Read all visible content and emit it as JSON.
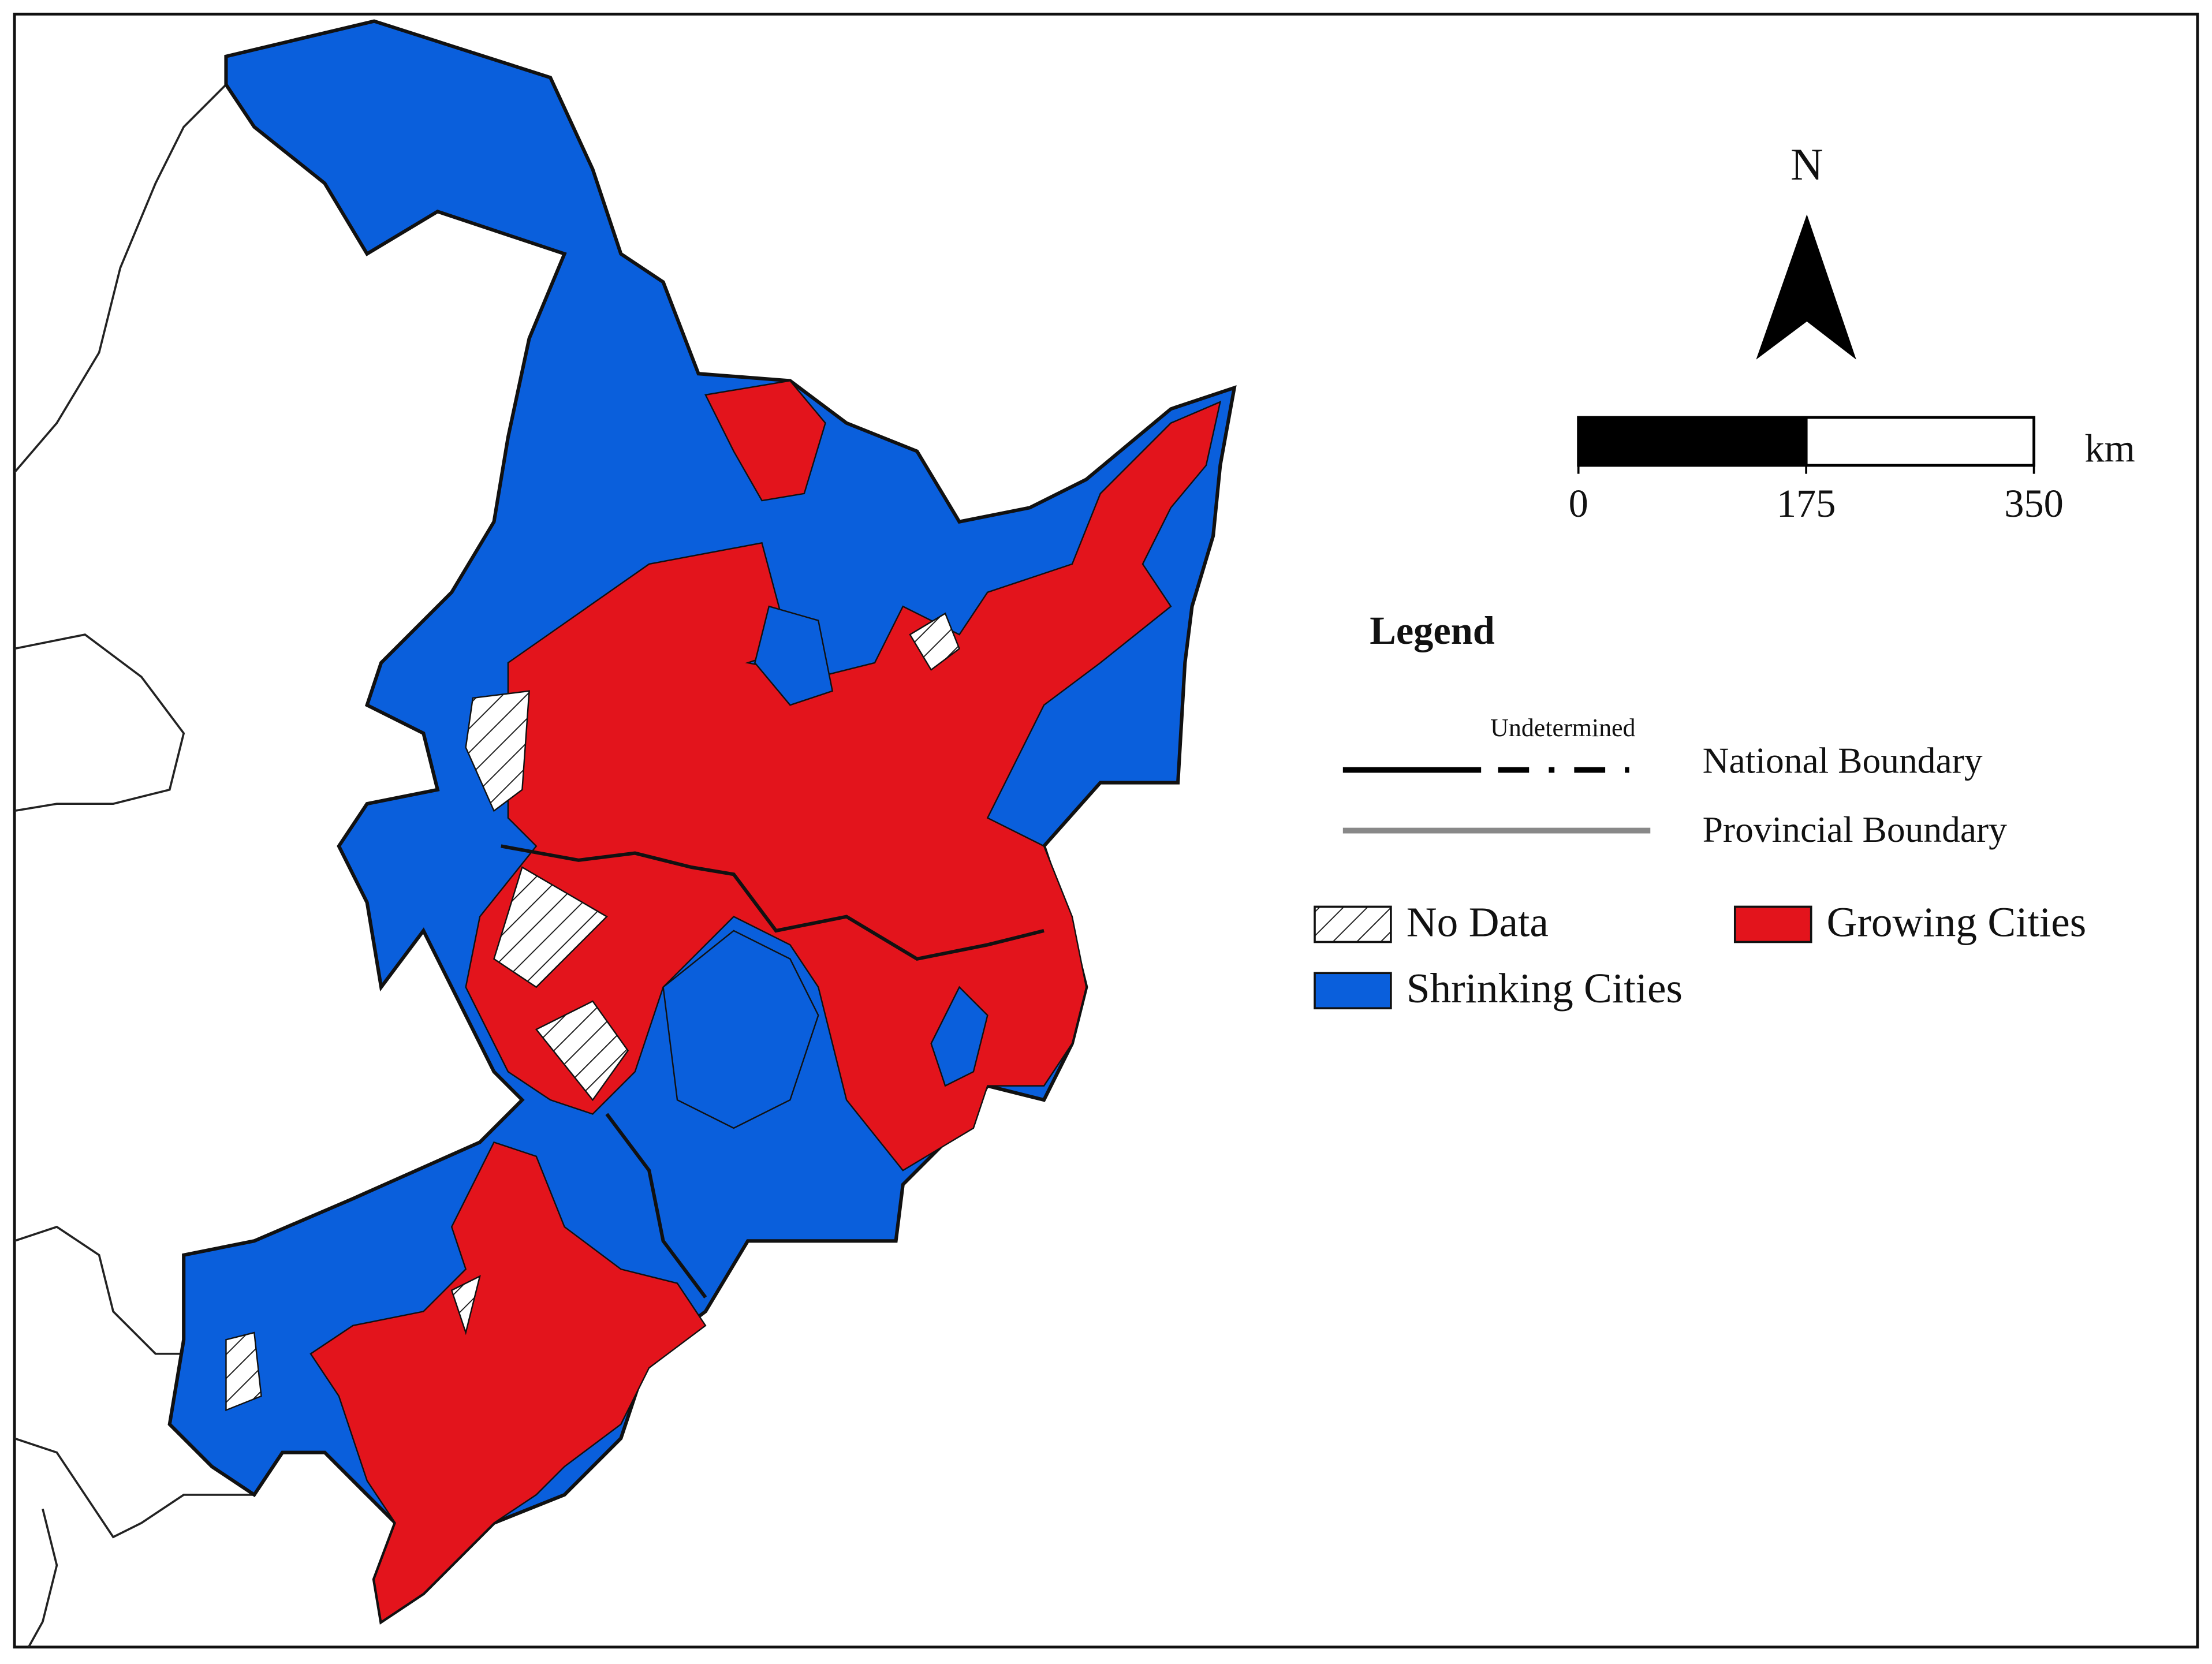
{
  "north_arrow": {
    "label": "N"
  },
  "scale_bar": {
    "ticks": [
      0,
      175,
      350
    ],
    "unit": "km"
  },
  "legend": {
    "title": "Legend",
    "boundaries": [
      {
        "label": "National Boundary",
        "note": "Undetermined"
      },
      {
        "label": "Provincial Boundary"
      }
    ],
    "items": [
      {
        "label": "No Data"
      },
      {
        "label": "Growing Cities",
        "color": "#e3141c"
      },
      {
        "label": "Shrinking Cities",
        "color": "#0a5fdc"
      }
    ]
  }
}
